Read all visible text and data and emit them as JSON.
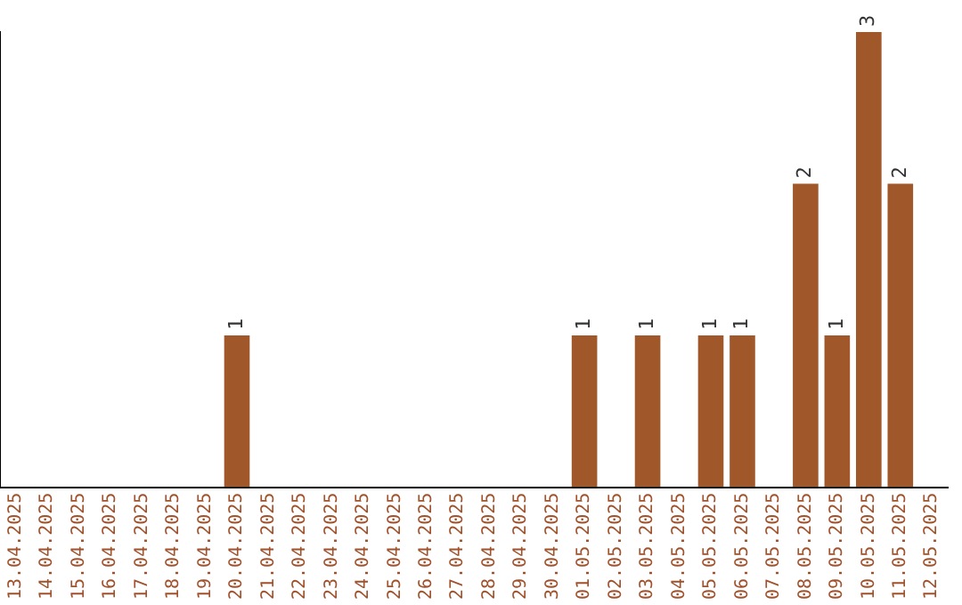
{
  "chart_data": {
    "type": "bar",
    "categories": [
      "13.04.2025",
      "14.04.2025",
      "15.04.2025",
      "16.04.2025",
      "17.04.2025",
      "18.04.2025",
      "19.04.2025",
      "20.04.2025",
      "21.04.2025",
      "22.04.2025",
      "23.04.2025",
      "24.04.2025",
      "25.04.2025",
      "26.04.2025",
      "27.04.2025",
      "28.04.2025",
      "29.04.2025",
      "30.04.2025",
      "01.05.2025",
      "02.05.2025",
      "03.05.2025",
      "04.05.2025",
      "05.05.2025",
      "06.05.2025",
      "07.05.2025",
      "08.05.2025",
      "09.05.2025",
      "10.05.2025",
      "11.05.2025",
      "12.05.2025"
    ],
    "values": [
      null,
      null,
      null,
      null,
      null,
      null,
      null,
      1,
      null,
      null,
      null,
      null,
      null,
      null,
      null,
      null,
      null,
      null,
      1,
      null,
      1,
      null,
      1,
      1,
      null,
      2,
      1,
      3,
      2,
      null
    ],
    "color": "#a0582a",
    "data_labels": true,
    "grid": false,
    "legend": false,
    "tick_labels": "x"
  }
}
